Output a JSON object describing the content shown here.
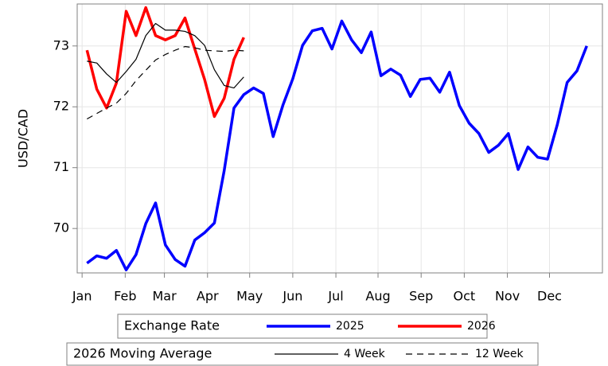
{
  "chart_data": {
    "type": "line",
    "ylabel": "USD/CAD",
    "x": [
      1,
      2,
      3,
      4,
      5,
      6,
      7,
      8,
      9,
      10,
      11,
      12,
      13,
      14,
      15,
      16,
      17,
      18,
      19,
      20,
      21,
      22,
      23,
      24,
      25,
      26,
      27,
      28,
      29,
      30,
      31,
      32,
      33,
      34,
      35,
      36,
      37,
      38,
      39,
      40,
      41,
      42,
      43,
      44,
      45,
      46,
      47,
      48,
      49,
      50,
      51,
      52
    ],
    "xlim": [
      0,
      53.6
    ],
    "xticks": [
      {
        "value": 0.5,
        "label": "Jan"
      },
      {
        "value": 4.9,
        "label": "Feb"
      },
      {
        "value": 8.9,
        "label": "Mar"
      },
      {
        "value": 13.3,
        "label": "Apr"
      },
      {
        "value": 17.6,
        "label": "May"
      },
      {
        "value": 22.0,
        "label": "Jun"
      },
      {
        "value": 26.4,
        "label": "Jul"
      },
      {
        "value": 30.7,
        "label": "Aug"
      },
      {
        "value": 35.1,
        "label": "Sep"
      },
      {
        "value": 39.5,
        "label": "Oct"
      },
      {
        "value": 43.9,
        "label": "Nov"
      },
      {
        "value": 48.2,
        "label": "Dec"
      }
    ],
    "ylim": [
      69.27,
      73.69
    ],
    "yticks": [
      70,
      71,
      72,
      73
    ],
    "grid": true,
    "legend_titles": [
      "Exchange Rate",
      "2026 Moving Average"
    ],
    "series": [
      {
        "name": "2025",
        "color": "#0000ff",
        "width": 3.5,
        "dash": false,
        "group": 0,
        "values": [
          69.43,
          69.55,
          69.51,
          69.64,
          69.32,
          69.57,
          70.08,
          70.42,
          69.73,
          69.49,
          69.38,
          69.81,
          69.93,
          70.09,
          70.95,
          71.98,
          72.2,
          72.31,
          72.22,
          71.51,
          72.03,
          72.46,
          73.01,
          73.25,
          73.29,
          72.95,
          73.41,
          73.1,
          72.89,
          73.23,
          72.51,
          72.62,
          72.52,
          72.17,
          72.45,
          72.47,
          72.24,
          72.57,
          72.02,
          71.73,
          71.56,
          71.25,
          71.37,
          71.56,
          70.97,
          71.34,
          71.17,
          71.14,
          71.71,
          72.4,
          72.59,
          73.0
        ]
      },
      {
        "name": "2026",
        "color": "#ff0000",
        "width": 3.5,
        "dash": false,
        "group": 0,
        "values": [
          72.93,
          72.29,
          71.98,
          72.39,
          73.57,
          73.17,
          73.63,
          73.17,
          73.1,
          73.17,
          73.46,
          72.95,
          72.45,
          71.84,
          72.14,
          72.78,
          73.14,
          null,
          null,
          null,
          null,
          null,
          null,
          null,
          null,
          null,
          null,
          null,
          null,
          null,
          null,
          null,
          null,
          null,
          null,
          null,
          null,
          null,
          null,
          null,
          null,
          null,
          null,
          null,
          null,
          null,
          null,
          null,
          null,
          null,
          null,
          null
        ]
      },
      {
        "name": "4 Week",
        "color": "#000000",
        "width": 1.2,
        "dash": false,
        "group": 1,
        "values": [
          72.75,
          72.72,
          72.54,
          72.4,
          72.58,
          72.78,
          73.17,
          73.37,
          73.26,
          73.26,
          73.24,
          73.17,
          73.01,
          72.61,
          72.35,
          72.31,
          72.49,
          null,
          null,
          null,
          null,
          null,
          null,
          null,
          null,
          null,
          null,
          null,
          null,
          null,
          null,
          null,
          null,
          null,
          null,
          null,
          null,
          null,
          null,
          null,
          null,
          null,
          null,
          null,
          null,
          null,
          null,
          null,
          null,
          null,
          null,
          null
        ]
      },
      {
        "name": "12 Week",
        "color": "#000000",
        "width": 1.2,
        "dash": true,
        "group": 1,
        "values": [
          71.8,
          71.89,
          71.98,
          72.06,
          72.22,
          72.43,
          72.6,
          72.77,
          72.86,
          72.93,
          72.99,
          72.97,
          72.93,
          72.92,
          72.91,
          72.93,
          72.92,
          null,
          null,
          null,
          null,
          null,
          null,
          null,
          null,
          null,
          null,
          null,
          null,
          null,
          null,
          null,
          null,
          null,
          null,
          null,
          null,
          null,
          null,
          null,
          null,
          null,
          null,
          null,
          null,
          null,
          null,
          null,
          null,
          null,
          null,
          null
        ]
      }
    ]
  }
}
